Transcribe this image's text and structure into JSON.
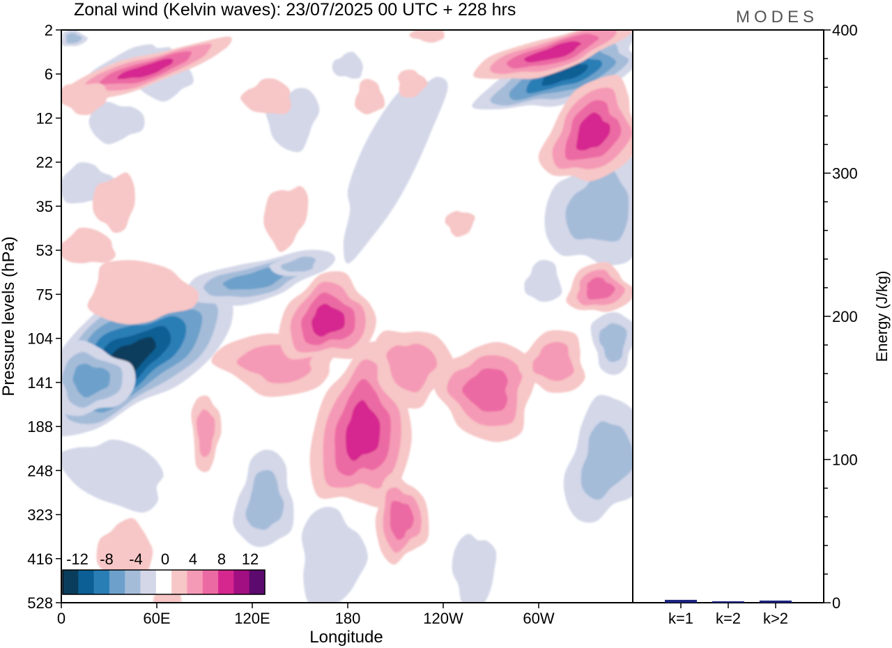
{
  "title": "Zonal wind (Kelvin waves):  23/07/2025  00 UTC  + 228 hrs",
  "logo": "MODES",
  "chart_data": [
    {
      "type": "heatmap",
      "title": "Zonal wind (Kelvin waves):  23/07/2025  00 UTC  + 228 hrs",
      "xlabel": "Longitude",
      "ylabel": "Pressure levels (hPa)",
      "x_ticks": [
        "0",
        "60E",
        "120E",
        "180",
        "120W",
        "60W"
      ],
      "y_ticks": [
        "2",
        "6",
        "12",
        "22",
        "35",
        "53",
        "75",
        "104",
        "141",
        "188",
        "248",
        "323",
        "416",
        "528"
      ],
      "colorbar": {
        "tick_labels": [
          "-12",
          "-8",
          "-4",
          "0",
          "4",
          "8",
          "12"
        ],
        "levels": [
          -14,
          -12,
          -10,
          -8,
          -6,
          -4,
          -2,
          2,
          4,
          6,
          8,
          10,
          12,
          14
        ],
        "colors": [
          "#0a3d5c",
          "#0b5f94",
          "#2a7eb6",
          "#6da1cb",
          "#a5bcd9",
          "#d3d7e8",
          "#ffffff",
          "#f7c6c6",
          "#f59ab6",
          "#ec6aa3",
          "#d6278f",
          "#a10f82",
          "#5c0a6e"
        ]
      },
      "features": [
        {
          "name": "strong-easterly-core",
          "value": -14,
          "lon": [
            30,
            80
          ],
          "level_hPa": [
            95,
            200
          ]
        },
        {
          "name": "upper-easterly-band",
          "value": -8,
          "lon": [
            290,
            350
          ],
          "level_hPa": [
            5,
            12
          ]
        },
        {
          "name": "upper-westerly-band",
          "value": 10,
          "lon": [
            285,
            350
          ],
          "level_hPa": [
            2,
            6
          ]
        },
        {
          "name": "westerly-band-midlevel",
          "value": 8,
          "lon": [
            160,
            210
          ],
          "level_hPa": [
            90,
            250
          ]
        }
      ]
    },
    {
      "type": "bar",
      "categories": [
        "k=1",
        "k=2",
        "k>2"
      ],
      "values": [
        2,
        1,
        1.5
      ],
      "ylabel": "Energy (J/kg)",
      "y_ticks": [
        "0",
        "100",
        "200",
        "300",
        "400"
      ],
      "ylim": [
        0,
        400
      ],
      "bar_color": "#1a237e"
    }
  ]
}
